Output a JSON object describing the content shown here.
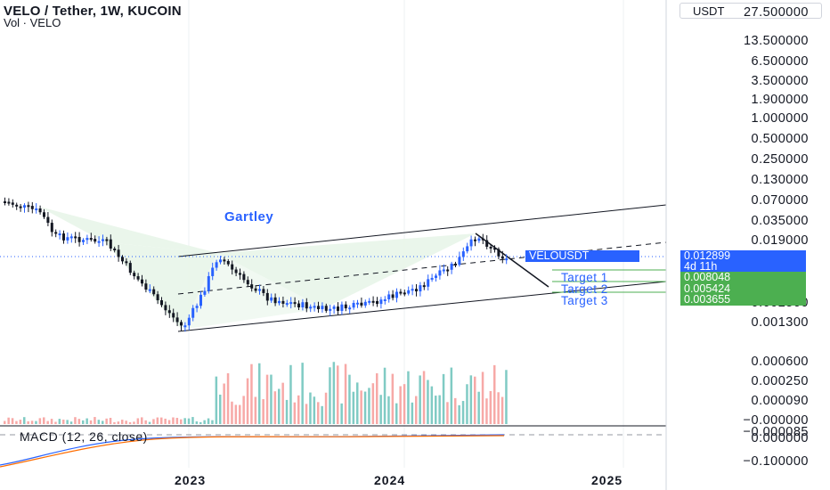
{
  "header": {
    "title": "VELO / Tether, 1W, KUCOIN",
    "subtitle": "Vol · VELO"
  },
  "currency_button": "USDT",
  "y_axis_labels": [
    "27.500000",
    "13.500000",
    "6.500000",
    "3.500000",
    "1.900000",
    "1.000000",
    "0.500000",
    "0.250000",
    "0.130000",
    "0.070000",
    "0.035000",
    "0.019000",
    "0.002500",
    "0.001300",
    "0.000600",
    "0.000250",
    "0.000090",
    "−0.000000",
    "−0.000085",
    "0.000000",
    "−0.100000"
  ],
  "price_badges": {
    "symbol": "VELOUSDT",
    "price": "0.012899",
    "countdown": "4d 11h",
    "target1_value": "0.008048",
    "target2_value": "0.005424",
    "target3_value": "0.003655"
  },
  "targets": [
    "Target 1",
    "Target 2",
    "Target 3"
  ],
  "pattern_label": "Gartley",
  "macd_label": "MACD (12, 26, close)",
  "x_axis_labels": [
    "2023",
    "2024",
    "2025"
  ],
  "colors": {
    "up": "#2962ff",
    "down": "#131722",
    "vol_up": "#80cbc4",
    "vol_down": "#f7a9a7",
    "badge_blue": "#2962ff",
    "badge_green": "#4caf50",
    "pattern_fill": "#e8f5e9",
    "macd_blue": "#2962ff",
    "macd_orange": "#ff6d00"
  },
  "chart_data": {
    "type": "candlestick",
    "symbol": "VELO / Tether",
    "interval": "1W",
    "exchange": "KUCOIN",
    "y_scale": "log",
    "last_price": 0.012899,
    "targets": [
      0.008048,
      0.005424,
      0.003655
    ],
    "volume_series": "VELO",
    "indicator": "MACD (12, 26, close)"
  }
}
